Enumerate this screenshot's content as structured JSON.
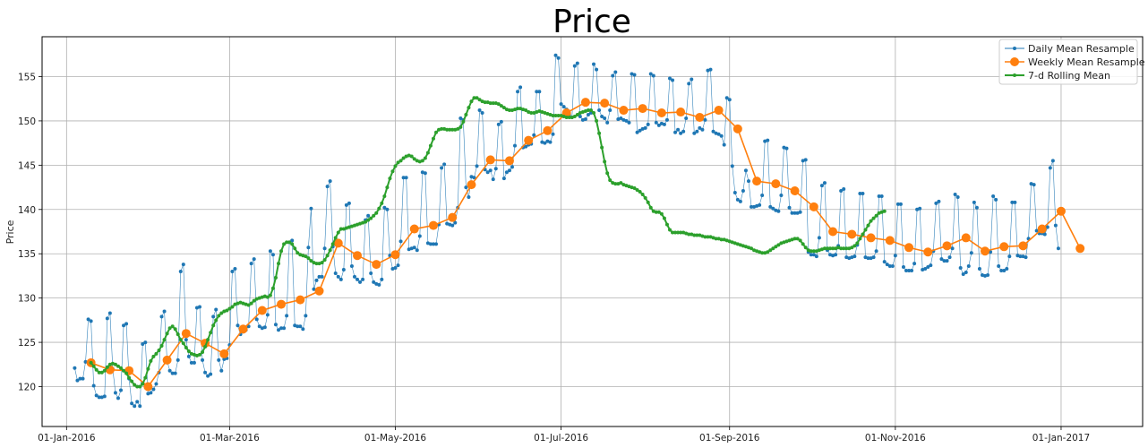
{
  "chart_data": {
    "type": "line",
    "title": "Price",
    "xlabel": "",
    "ylabel": "Price",
    "grid": true,
    "legend_position": "top-right",
    "xlim": [
      "2015-12-23",
      "2017-01-31"
    ],
    "ylim": [
      115.5,
      159.5
    ],
    "x_ticks": [
      "2016-01-01",
      "2016-03-01",
      "2016-05-01",
      "2016-07-01",
      "2016-09-01",
      "2016-11-01",
      "2017-01-01"
    ],
    "x_tick_labels": [
      "01-Jan-2016",
      "01-Mar-2016",
      "01-May-2016",
      "01-Jul-2016",
      "01-Sep-2016",
      "01-Nov-2016",
      "01-Jan-2017"
    ],
    "y_ticks": [
      120,
      125,
      130,
      135,
      140,
      145,
      150,
      155
    ],
    "y_tick_labels": [
      "120",
      "125",
      "130",
      "135",
      "140",
      "145",
      "150",
      "155"
    ],
    "series": [
      {
        "name": "Daily Mean Resample",
        "color": "#1f77b4",
        "x_start": "2016-01-04",
        "x_step_days": 1,
        "values": [
          122.1,
          120.7,
          120.9,
          120.9,
          122.8,
          127.6,
          127.4,
          120.1,
          119.0,
          118.8,
          118.8,
          118.9,
          127.7,
          128.3,
          122.0,
          119.3,
          118.7,
          119.6,
          126.9,
          127.1,
          120.9,
          118.1,
          117.8,
          118.3,
          117.8,
          124.8,
          125.0,
          119.2,
          119.3,
          119.7,
          120.3,
          121.6,
          127.9,
          128.5,
          122.9,
          121.8,
          121.5,
          121.5,
          123.0,
          133.0,
          133.8,
          125.3,
          123.4,
          122.7,
          122.7,
          128.9,
          129.0,
          123.0,
          121.6,
          121.2,
          121.4,
          127.9,
          128.7,
          123.0,
          121.8,
          123.1,
          123.2,
          124.7,
          133.0,
          133.3,
          126.9,
          125.9,
          126.2,
          126.4,
          126.8,
          133.9,
          134.4,
          127.6,
          126.8,
          126.6,
          126.7,
          128.1,
          135.3,
          134.9,
          127.0,
          126.4,
          126.6,
          126.6,
          128.0,
          136.3,
          136.5,
          126.9,
          126.8,
          126.8,
          126.5,
          128.0,
          135.7,
          140.1,
          131.0,
          132.0,
          132.4,
          132.4,
          135.6,
          142.6,
          143.2,
          135.8,
          132.8,
          132.4,
          132.1,
          133.2,
          140.5,
          140.7,
          133.6,
          132.4,
          132.1,
          131.8,
          132.1,
          138.8,
          139.3,
          132.8,
          131.8,
          131.6,
          131.5,
          132.1,
          140.2,
          140.0,
          134.8,
          133.3,
          133.4,
          133.7,
          136.4,
          143.6,
          143.6,
          135.5,
          135.6,
          135.7,
          135.4,
          137.0,
          144.2,
          144.1,
          136.2,
          136.1,
          136.1,
          136.1,
          138.3,
          144.7,
          145.1,
          138.4,
          138.3,
          138.2,
          138.5,
          140.2,
          150.3,
          150.1,
          142.5,
          141.4,
          143.7,
          143.6,
          144.9,
          151.2,
          150.9,
          144.5,
          144.2,
          144.4,
          143.4,
          144.6,
          149.6,
          149.9,
          143.5,
          144.2,
          144.4,
          144.8,
          147.2,
          153.3,
          153.8,
          147.0,
          147.1,
          147.3,
          147.4,
          148.4,
          153.3,
          153.3,
          147.6,
          147.5,
          147.7,
          147.6,
          148.5,
          157.4,
          157.1,
          151.9,
          151.6,
          151.3,
          150.7,
          150.4,
          156.2,
          156.5,
          150.5,
          150.1,
          150.2,
          150.7,
          150.9,
          156.4,
          155.8,
          151.2,
          150.5,
          150.3,
          149.8,
          151.2,
          155.1,
          155.5,
          150.2,
          150.3,
          150.1,
          150.0,
          149.8,
          155.3,
          155.2,
          148.7,
          148.9,
          149.1,
          149.2,
          149.6,
          155.3,
          155.1,
          149.8,
          149.5,
          149.7,
          149.6,
          150.1,
          154.8,
          154.6,
          148.7,
          149.0,
          148.6,
          148.8,
          150.3,
          154.2,
          154.7,
          148.6,
          148.8,
          149.2,
          149.0,
          150.1,
          155.7,
          155.8,
          148.8,
          148.6,
          148.5,
          148.3,
          147.3,
          152.6,
          152.4,
          144.9,
          141.9,
          141.1,
          140.9,
          142.1,
          144.4,
          143.2,
          140.3,
          140.3,
          140.4,
          140.5,
          141.6,
          147.7,
          147.8,
          140.3,
          140.1,
          139.9,
          139.8,
          141.6,
          147.0,
          146.9,
          140.2,
          139.6,
          139.6,
          139.6,
          139.7,
          145.5,
          145.6,
          135.2,
          134.9,
          134.9,
          134.7,
          136.8,
          142.7,
          143.0,
          135.4,
          134.9,
          134.8,
          134.9,
          135.9,
          142.1,
          142.3,
          134.6,
          134.5,
          134.6,
          134.7,
          136.0,
          141.8,
          141.8,
          134.6,
          134.5,
          134.5,
          134.6,
          135.3,
          141.5,
          141.5,
          134.1,
          133.8,
          133.6,
          133.6,
          134.8,
          140.6,
          140.6,
          133.5,
          133.1,
          133.1,
          133.1,
          133.9,
          140.0,
          140.1,
          133.2,
          133.3,
          133.5,
          133.7,
          135.3,
          140.7,
          140.9,
          134.4,
          134.2,
          134.2,
          134.6,
          135.6,
          141.7,
          141.4,
          133.4,
          132.7,
          132.9,
          133.6,
          135.1,
          140.8,
          140.2,
          133.3,
          132.6,
          132.5,
          132.6,
          135.2,
          141.5,
          141.1,
          133.6,
          133.1,
          133.1,
          133.3,
          134.7,
          140.8,
          140.8,
          134.8,
          134.7,
          134.7,
          134.6,
          136.7,
          142.9,
          142.8,
          137.6,
          137.3,
          137.3,
          137.2,
          138.0,
          144.7,
          145.5,
          138.2,
          135.6
        ]
      },
      {
        "name": "Weekly Mean Resample",
        "color": "#ff7f0e",
        "x_start": "2016-01-10",
        "x_step_days": 7,
        "values": [
          122.7,
          121.9,
          121.8,
          120.0,
          123.0,
          126.0,
          124.9,
          123.7,
          126.5,
          128.6,
          129.3,
          129.8,
          130.8,
          136.2,
          134.8,
          133.8,
          134.9,
          137.8,
          138.2,
          139.1,
          142.8,
          145.6,
          145.5,
          147.8,
          148.9,
          150.9,
          152.1,
          152.0,
          151.2,
          151.4,
          150.9,
          151.0,
          150.4,
          151.2,
          149.1,
          143.2,
          142.9,
          142.1,
          140.3,
          137.5,
          137.2,
          136.8,
          136.5,
          135.7,
          135.2,
          135.9,
          136.8,
          135.3,
          135.8,
          135.9,
          137.8,
          139.8,
          135.6
        ]
      },
      {
        "name": "7-d Rolling Mean",
        "color": "#2ca02c",
        "x_start": "2016-01-10",
        "x_step_days": 1,
        "values": [
          122.7,
          122.3,
          121.9,
          121.6,
          121.6,
          121.8,
          122.2,
          122.5,
          122.6,
          122.5,
          122.3,
          122.1,
          121.8,
          121.5,
          121.0,
          120.6,
          120.2,
          120.0,
          120.0,
          120.3,
          121.0,
          122.0,
          122.9,
          123.4,
          123.7,
          124.1,
          124.6,
          125.3,
          126.0,
          126.6,
          126.8,
          126.5,
          125.9,
          125.3,
          124.9,
          124.4,
          124.0,
          123.7,
          123.6,
          123.5,
          123.6,
          123.9,
          124.5,
          125.3,
          126.1,
          126.9,
          127.5,
          128.0,
          128.3,
          128.5,
          128.6,
          128.8,
          129.0,
          129.3,
          129.4,
          129.5,
          129.4,
          129.3,
          129.2,
          129.4,
          129.7,
          129.9,
          130.0,
          130.1,
          130.2,
          130.1,
          130.3,
          131.1,
          132.3,
          133.9,
          135.3,
          136.1,
          136.3,
          136.3,
          136.1,
          135.6,
          135.1,
          134.9,
          134.8,
          134.7,
          134.5,
          134.2,
          134.0,
          133.9,
          133.9,
          134.0,
          134.3,
          134.8,
          135.4,
          136.1,
          136.8,
          137.4,
          137.8,
          137.8,
          137.9,
          138.0,
          138.1,
          138.2,
          138.3,
          138.4,
          138.5,
          138.6,
          138.8,
          139.0,
          139.3,
          139.6,
          140.1,
          140.7,
          141.5,
          142.5,
          143.5,
          144.3,
          144.9,
          145.3,
          145.5,
          145.8,
          146.0,
          146.1,
          146.0,
          145.7,
          145.5,
          145.4,
          145.5,
          145.8,
          146.4,
          147.2,
          148.0,
          148.7,
          149.0,
          149.1,
          149.1,
          149.0,
          149.0,
          149.0,
          149.0,
          149.1,
          149.3,
          149.9,
          150.7,
          151.5,
          152.2,
          152.6,
          152.6,
          152.4,
          152.2,
          152.1,
          152.1,
          152.0,
          152.0,
          152.0,
          151.9,
          151.7,
          151.5,
          151.3,
          151.2,
          151.2,
          151.3,
          151.4,
          151.4,
          151.3,
          151.2,
          151.0,
          150.9,
          150.9,
          151.0,
          151.1,
          151.0,
          150.9,
          150.8,
          150.7,
          150.6,
          150.6,
          150.6,
          150.6,
          150.5,
          150.4,
          150.4,
          150.4,
          150.5,
          150.7,
          150.9,
          151.0,
          151.1,
          151.2,
          151.2,
          150.9,
          150.0,
          148.6,
          147.0,
          145.4,
          144.1,
          143.3,
          143.0,
          142.9,
          142.9,
          143.0,
          142.8,
          142.7,
          142.6,
          142.5,
          142.4,
          142.2,
          142.0,
          141.7,
          141.3,
          140.8,
          140.2,
          139.8,
          139.7,
          139.7,
          139.5,
          139.0,
          138.3,
          137.7,
          137.4,
          137.4,
          137.4,
          137.4,
          137.4,
          137.3,
          137.2,
          137.2,
          137.1,
          137.1,
          137.1,
          137.0,
          136.9,
          136.9,
          136.9,
          136.8,
          136.7,
          136.7,
          136.6,
          136.6,
          136.5,
          136.4,
          136.3,
          136.2,
          136.1,
          136.0,
          135.9,
          135.8,
          135.7,
          135.6,
          135.4,
          135.3,
          135.2,
          135.1,
          135.1,
          135.2,
          135.4,
          135.6,
          135.8,
          136.0,
          136.2,
          136.3,
          136.4,
          136.5,
          136.6,
          136.7,
          136.7,
          136.5,
          136.1,
          135.7,
          135.4,
          135.3,
          135.3,
          135.3,
          135.4,
          135.5,
          135.6,
          135.6,
          135.6,
          135.6,
          135.6,
          135.7,
          135.6,
          135.6,
          135.6,
          135.6,
          135.7,
          135.9,
          136.2,
          136.7,
          137.2,
          137.7,
          138.2,
          138.7,
          139.0,
          139.3,
          139.6,
          139.7,
          139.8
        ]
      }
    ]
  }
}
